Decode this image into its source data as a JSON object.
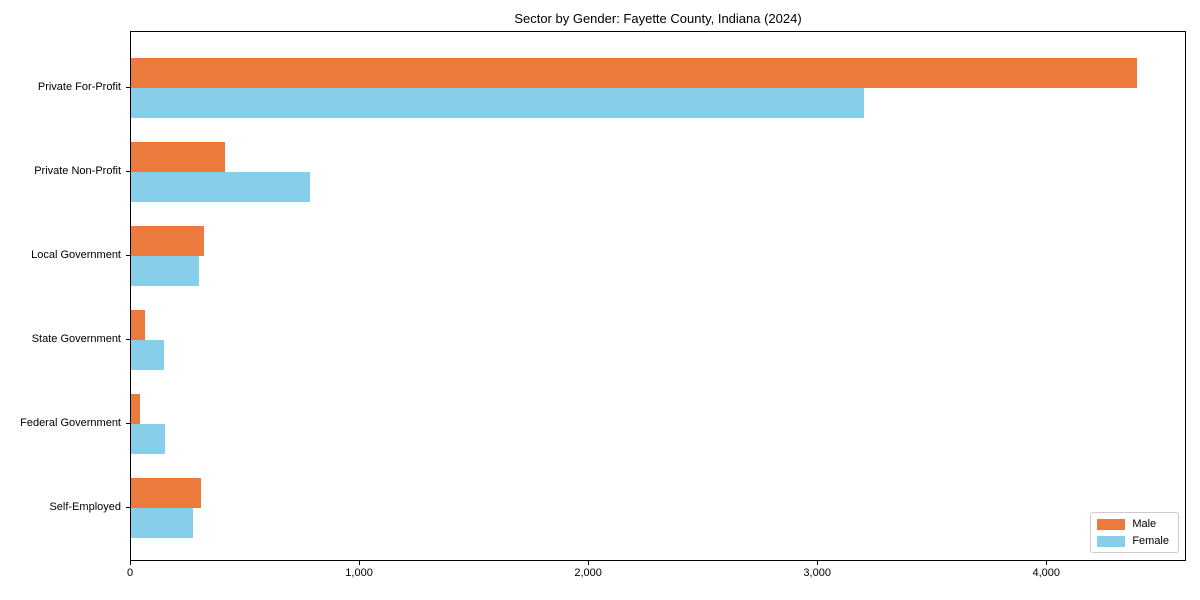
{
  "chart_data": {
    "type": "bar",
    "orientation": "horizontal",
    "title": "Sector by Gender: Fayette County, Indiana (2024)",
    "xlabel": "",
    "ylabel": "",
    "categories": [
      "Private For-Profit",
      "Private Non-Profit",
      "Local Government",
      "State Government",
      "Federal Government",
      "Self-Employed"
    ],
    "series": [
      {
        "name": "Male",
        "color": "#EB7A3C",
        "values": [
          4390,
          410,
          320,
          60,
          40,
          305
        ]
      },
      {
        "name": "Female",
        "color": "#87CEEB",
        "values": [
          3200,
          780,
          295,
          145,
          150,
          270
        ]
      }
    ],
    "xlim": [
      0,
      4610
    ],
    "x_ticks": [
      0,
      1000,
      2000,
      3000,
      4000
    ],
    "x_tick_labels": [
      "0",
      "1,000",
      "2,000",
      "3,000",
      "4,000"
    ],
    "grid": false,
    "legend_position": "lower right"
  }
}
